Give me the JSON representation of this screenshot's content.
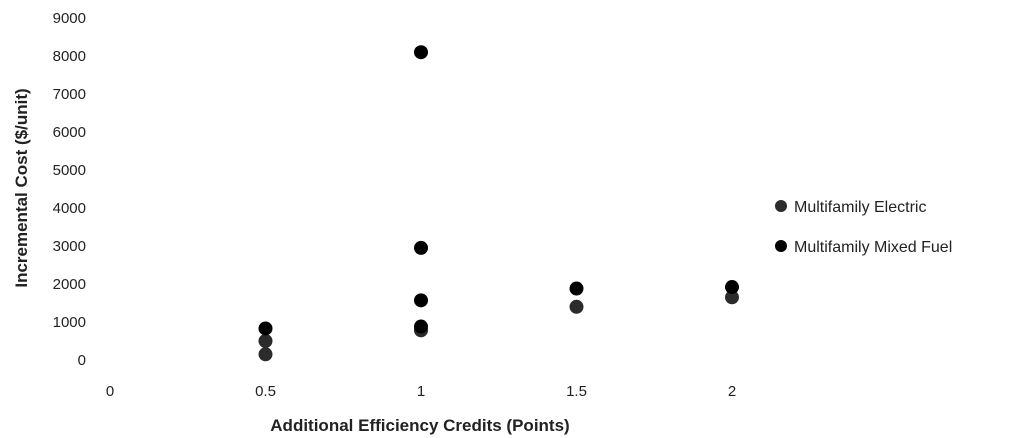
{
  "chart_data": {
    "type": "scatter",
    "xlabel": "Additional Efficiency Credits (Points)",
    "ylabel": "Incremental Cost ($/unit)",
    "xlim": [
      0,
      2
    ],
    "ylim": [
      0,
      9000
    ],
    "x_ticks": [
      "0",
      "0.5",
      "1",
      "1.5",
      "2"
    ],
    "y_ticks": [
      "0",
      "1000",
      "2000",
      "3000",
      "4000",
      "5000",
      "6000",
      "7000",
      "8000",
      "9000"
    ],
    "grid": false,
    "legend_position": "right",
    "series": [
      {
        "name": "Multifamily Electric",
        "color": "#2b2b2b",
        "points": [
          {
            "x": 0.5,
            "y": 150
          },
          {
            "x": 0.5,
            "y": 500
          },
          {
            "x": 1,
            "y": 780
          },
          {
            "x": 1.5,
            "y": 1400
          },
          {
            "x": 2,
            "y": 1650
          }
        ]
      },
      {
        "name": "Multifamily Mixed Fuel",
        "color": "#000000",
        "points": [
          {
            "x": 0.5,
            "y": 830
          },
          {
            "x": 1,
            "y": 880
          },
          {
            "x": 1,
            "y": 1570
          },
          {
            "x": 1,
            "y": 2950
          },
          {
            "x": 1,
            "y": 8100
          },
          {
            "x": 1.5,
            "y": 1880
          },
          {
            "x": 2,
            "y": 1920
          }
        ]
      }
    ]
  }
}
